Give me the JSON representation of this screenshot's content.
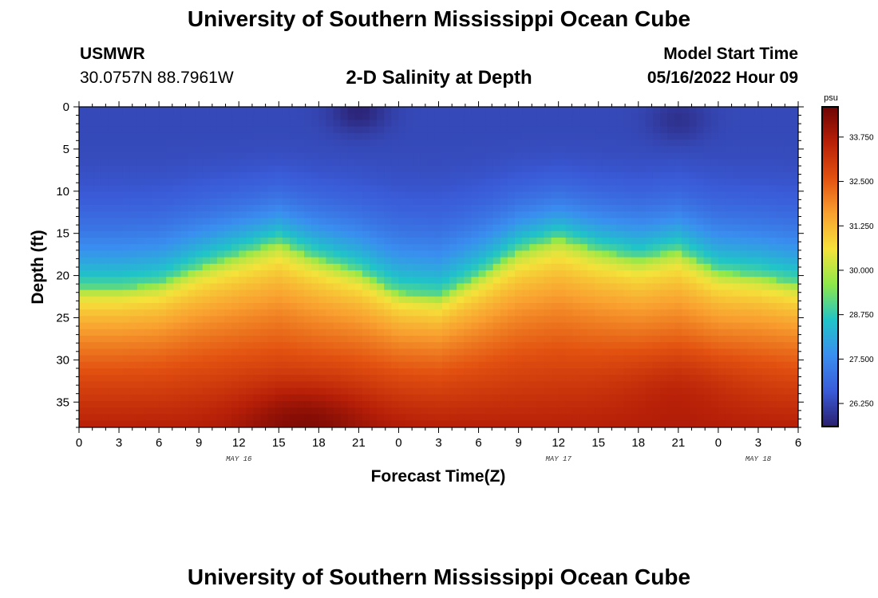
{
  "header": {
    "title": "University of Southern Mississippi Ocean Cube",
    "station": "USMWR",
    "coords": "30.0757N  88.7961W",
    "subtitle": "2-D Salinity at Depth",
    "start_label": "Model Start Time",
    "start_value": "05/16/2022 Hour 09"
  },
  "footer": {
    "title": "University of Southern Mississippi Ocean Cube"
  },
  "colors": {
    "stops": [
      "#2a1f6e",
      "#3a5bd8",
      "#3a8ef0",
      "#20c4c8",
      "#8ee84a",
      "#f5e23a",
      "#f9a030",
      "#e25010",
      "#b82008",
      "#6e0404"
    ]
  },
  "chart_data": {
    "type": "heatmap",
    "xlabel": "Forecast Time(Z)",
    "ylabel": "Depth (ft)",
    "x_ticks": [
      "0",
      "3",
      "6",
      "9",
      "12",
      "15",
      "18",
      "21",
      "0",
      "3",
      "6",
      "9",
      "12",
      "15",
      "18",
      "21",
      "0",
      "3",
      "6"
    ],
    "x_range_hours": [
      0,
      54
    ],
    "y_ticks": [
      "0",
      "5",
      "10",
      "15",
      "20",
      "25",
      "30",
      "35"
    ],
    "y_range_ft": [
      0,
      38
    ],
    "date_labels": [
      {
        "text": "MAY 16",
        "hour": 12
      },
      {
        "text": "MAY 17",
        "hour": 36
      },
      {
        "text": "MAY 18",
        "hour": 51
      }
    ],
    "colorbar": {
      "unit": "psu",
      "range": [
        25.6,
        34.6
      ],
      "ticks": [
        "26.250",
        "27.500",
        "28.750",
        "30.000",
        "31.250",
        "32.500",
        "33.750"
      ]
    },
    "halocline": {
      "hours": [
        0,
        3,
        6,
        9,
        12,
        15,
        18,
        21,
        24,
        27,
        30,
        33,
        36,
        39,
        42,
        45,
        48,
        51,
        54
      ],
      "green_depth_ft": [
        21.5,
        21.5,
        21,
        19,
        17.5,
        16,
        18,
        19.5,
        22,
        22.5,
        20,
        17,
        15.5,
        17,
        18,
        17,
        19.5,
        20,
        21
      ]
    },
    "surface_minima": [
      {
        "hour": 21,
        "depth_ft": 0.5,
        "psu": 25.7
      },
      {
        "hour": 45,
        "depth_ft": 1.5,
        "psu": 25.9
      }
    ],
    "bottom_maxima": [
      {
        "hour": 17,
        "depth_ft": 37,
        "psu": 34.4
      },
      {
        "hour": 45,
        "depth_ft": 33,
        "psu": 34.0
      }
    ],
    "surface_salinity_psu": 26.3,
    "bottom_salinity_psu": 33.6
  }
}
